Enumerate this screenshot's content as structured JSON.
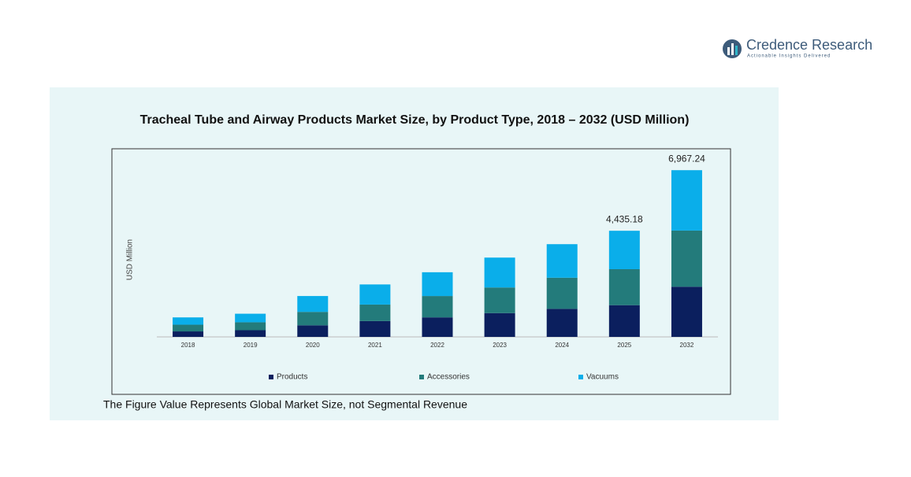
{
  "brand": {
    "name": "Credence Research",
    "tagline": "Actionable Insights Delivered"
  },
  "chart_data": {
    "type": "stacked-bar",
    "title": "Tracheal Tube and Airway Products Market Size, by Product Type, 2018 – 2032 (USD Million)",
    "y_label": "USD Million",
    "note": "The Figure Value Represents Global Market Size, not Segmental Revenue",
    "categories": [
      "2018",
      "2019",
      "2020",
      "2021",
      "2022",
      "2023",
      "2024",
      "2025",
      "2032"
    ],
    "series": [
      {
        "name": "Products",
        "color": "#0b1f5e",
        "values": [
          229,
          280,
          484,
          663,
          816,
          994,
          1173,
          1325.5,
          2097.3
        ]
      },
      {
        "name": "Accessories",
        "color": "#237b7b",
        "values": [
          280,
          331,
          561,
          688,
          892,
          1071,
          1300,
          1503.91,
          2346.1
        ]
      },
      {
        "name": "Vacuums",
        "color": "#0aaeea",
        "values": [
          306,
          357,
          663,
          841,
          994,
          1249,
          1402,
          1605.77,
          2523.84
        ]
      }
    ],
    "total_labels": [
      {
        "x": "2025",
        "value": 4435.18,
        "label": "4,435.18"
      },
      {
        "x": "2032",
        "value": 6967.24,
        "label": "6,967.24"
      }
    ],
    "ylim": [
      0,
      7500
    ],
    "legend": "bottom"
  }
}
